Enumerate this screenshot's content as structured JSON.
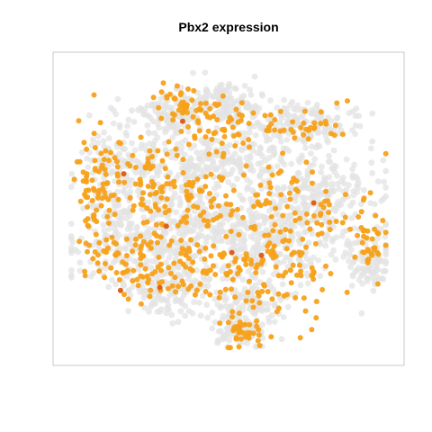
{
  "chart_data": {
    "type": "scatter",
    "title": "Pbx2 expression",
    "xlabel": "",
    "ylabel": "",
    "axes_visible": false,
    "grid": false,
    "legend": "none",
    "xlim": [
      0,
      100
    ],
    "ylim": [
      0,
      100
    ],
    "colors": {
      "low": "#e3e3e3",
      "mid": "#f7a11a",
      "high": "#e0601a",
      "frame": "#c8c8c8"
    },
    "series": [
      {
        "name": "",
        "expression_level": "low",
        "point_count_approx": 2200,
        "clusters": [
          {
            "x": 50,
            "y": 86,
            "sx": 7,
            "sy": 3.5,
            "n": 140
          },
          {
            "x": 30,
            "y": 82,
            "sx": 5,
            "sy": 3,
            "n": 90
          },
          {
            "x": 71,
            "y": 79,
            "sx": 9,
            "sy": 3.5,
            "n": 170
          },
          {
            "x": 15,
            "y": 62,
            "sx": 5,
            "sy": 10,
            "n": 160
          },
          {
            "x": 35,
            "y": 63,
            "sx": 9,
            "sy": 8,
            "n": 190
          },
          {
            "x": 52,
            "y": 67,
            "sx": 10,
            "sy": 4,
            "n": 130
          },
          {
            "x": 78,
            "y": 55,
            "sx": 10,
            "sy": 6,
            "n": 200
          },
          {
            "x": 92,
            "y": 33,
            "sx": 4,
            "sy": 6,
            "n": 110
          },
          {
            "x": 22,
            "y": 37,
            "sx": 10,
            "sy": 7,
            "n": 220
          },
          {
            "x": 45,
            "y": 43,
            "sx": 11,
            "sy": 8,
            "n": 240
          },
          {
            "x": 65,
            "y": 38,
            "sx": 9,
            "sy": 8,
            "n": 220
          },
          {
            "x": 32,
            "y": 22,
            "sx": 7,
            "sy": 4,
            "n": 120
          },
          {
            "x": 55,
            "y": 18,
            "sx": 6,
            "sy": 4,
            "n": 110
          },
          {
            "x": 53,
            "y": 7,
            "sx": 4,
            "sy": 3,
            "n": 70
          }
        ]
      },
      {
        "name": "",
        "expression_level": "mid",
        "point_count_approx": 720,
        "clusters": [
          {
            "x": 36,
            "y": 86,
            "sx": 4,
            "sy": 3,
            "n": 35
          },
          {
            "x": 48,
            "y": 77,
            "sx": 6,
            "sy": 5,
            "n": 55
          },
          {
            "x": 72,
            "y": 78,
            "sx": 9,
            "sy": 4,
            "n": 40
          },
          {
            "x": 10,
            "y": 58,
            "sx": 3.5,
            "sy": 13,
            "n": 75
          },
          {
            "x": 25,
            "y": 57,
            "sx": 8,
            "sy": 8,
            "n": 70
          },
          {
            "x": 42,
            "y": 55,
            "sx": 7,
            "sy": 6,
            "n": 55
          },
          {
            "x": 74,
            "y": 50,
            "sx": 10,
            "sy": 7,
            "n": 70
          },
          {
            "x": 93,
            "y": 38,
            "sx": 3,
            "sy": 6,
            "n": 30
          },
          {
            "x": 25,
            "y": 32,
            "sx": 9,
            "sy": 7,
            "n": 80
          },
          {
            "x": 47,
            "y": 33,
            "sx": 9,
            "sy": 8,
            "n": 85
          },
          {
            "x": 66,
            "y": 27,
            "sx": 8,
            "sy": 8,
            "n": 70
          },
          {
            "x": 54,
            "y": 8,
            "sx": 4,
            "sy": 3,
            "n": 40
          }
        ]
      },
      {
        "name": "",
        "expression_level": "high",
        "point_count_approx": 8,
        "points": [
          [
            18,
            62
          ],
          [
            17,
            22
          ],
          [
            29,
            23
          ],
          [
            51,
            35
          ],
          [
            60,
            34
          ],
          [
            76,
            52
          ],
          [
            36,
            80
          ],
          [
            31,
            44
          ]
        ]
      }
    ]
  }
}
